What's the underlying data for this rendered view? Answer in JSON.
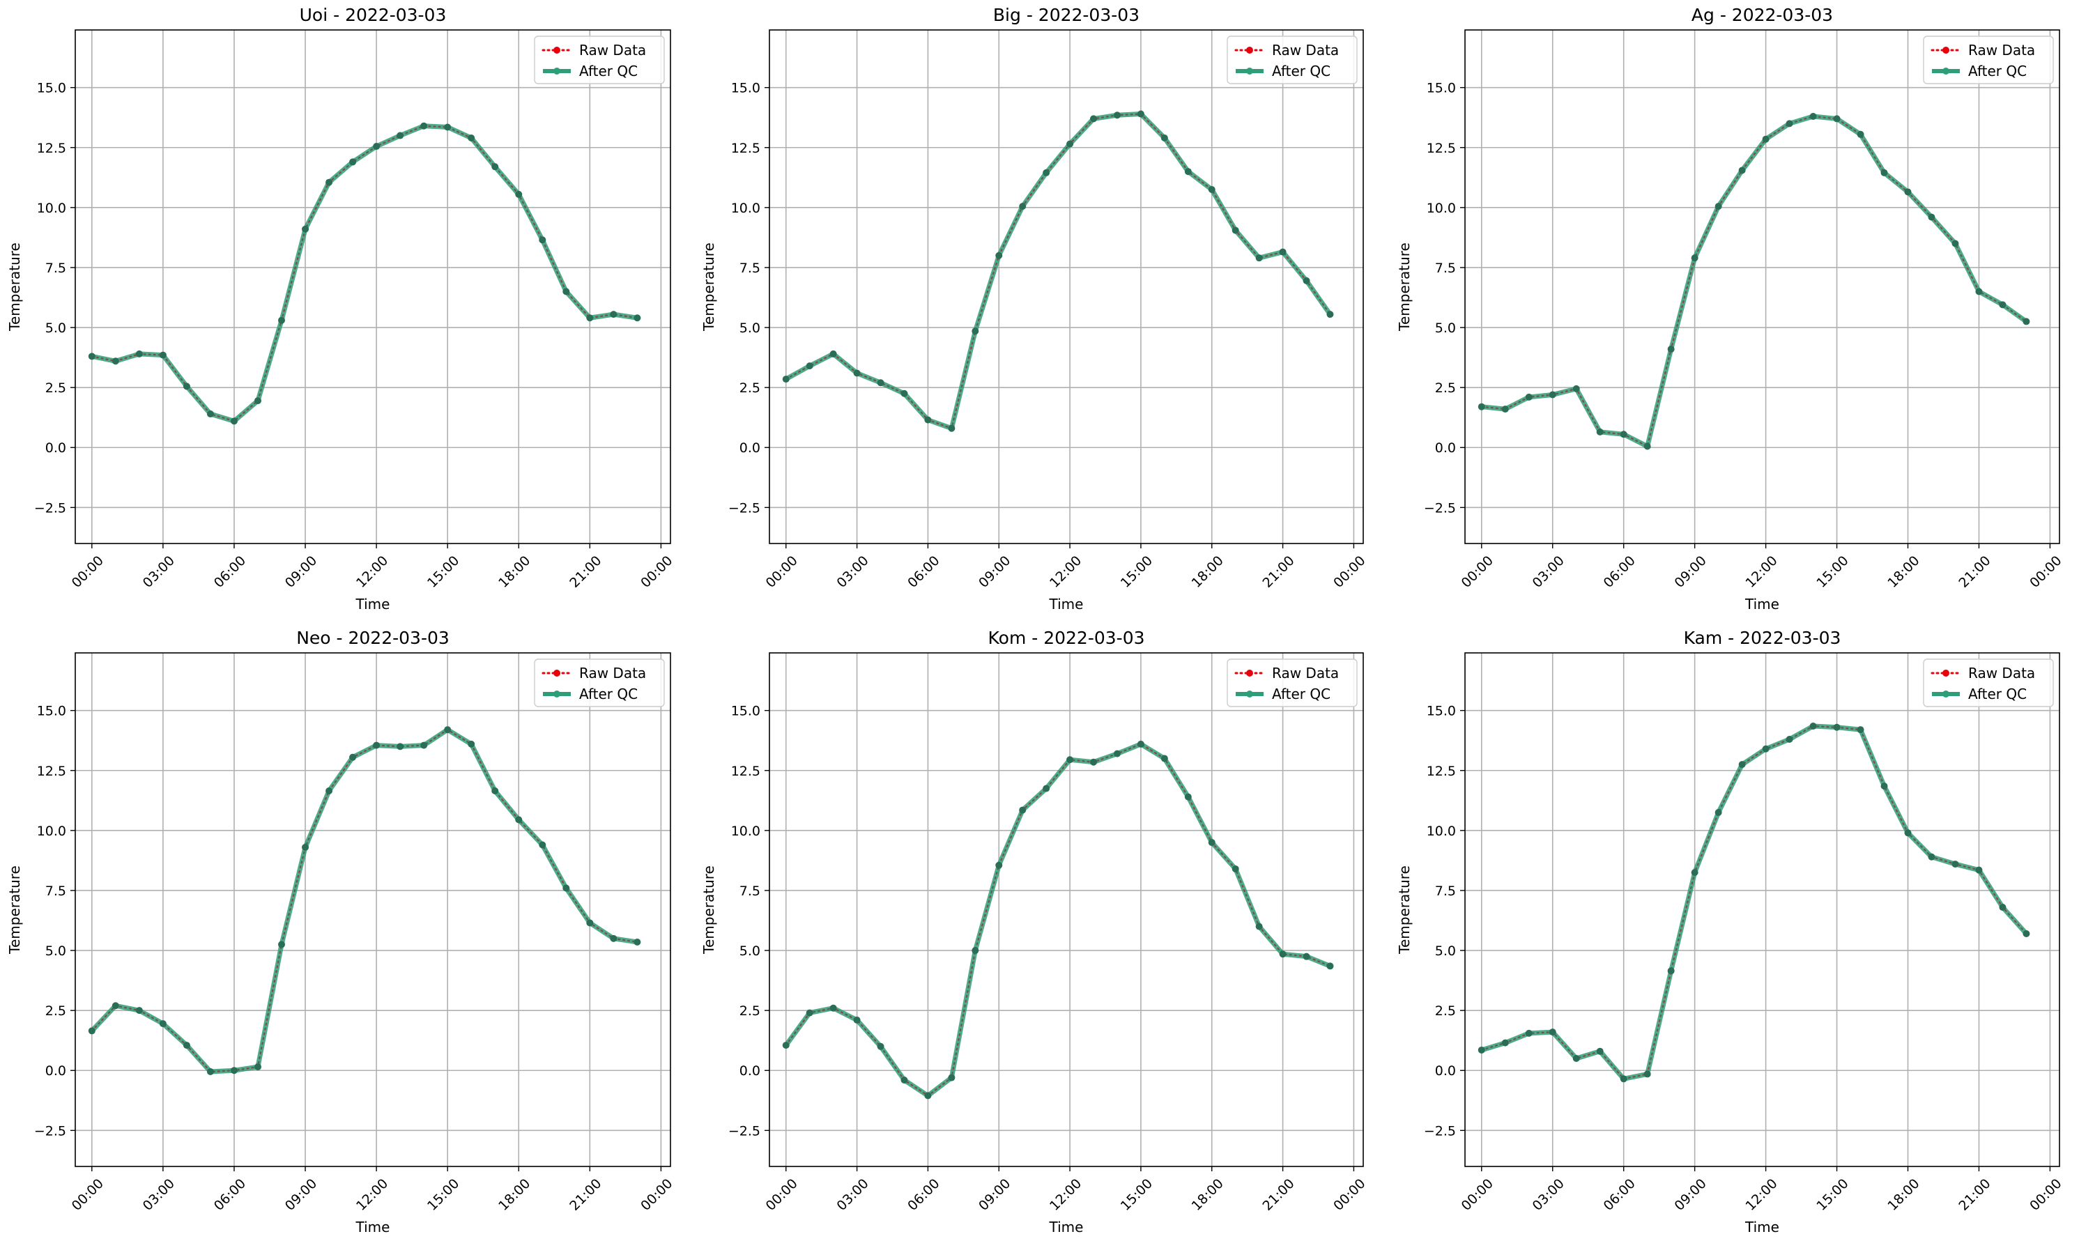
{
  "chart_data": [
    {
      "type": "line",
      "title": "Uoi - 2022-03-03",
      "xlabel": "Time",
      "ylabel": "Temperature",
      "ylim": [
        -4.0,
        17.4
      ],
      "yticks": [
        "−2.5",
        "0.0",
        "2.5",
        "5.0",
        "7.5",
        "10.0",
        "12.5",
        "15.0"
      ],
      "yticks_values": [
        -2.5,
        0,
        2.5,
        5,
        7.5,
        10,
        12.5,
        15
      ],
      "xticks": [
        "00:00",
        "03:00",
        "06:00",
        "09:00",
        "12:00",
        "15:00",
        "18:00",
        "21:00",
        "00:00"
      ],
      "x_hours": [
        0,
        1,
        2,
        3,
        4,
        5,
        6,
        7,
        8,
        9,
        10,
        11,
        12,
        13,
        14,
        15,
        16,
        17,
        18,
        19,
        20,
        21,
        22,
        23
      ],
      "grid": true,
      "legend_position": "upper right",
      "series": [
        {
          "name": "Raw Data",
          "color": "#e8000b",
          "style": "dotted",
          "values": [
            3.8,
            3.6,
            3.9,
            3.85,
            2.55,
            1.4,
            1.1,
            1.95,
            5.3,
            9.1,
            11.05,
            11.9,
            12.55,
            13.0,
            13.4,
            13.35,
            12.9,
            11.7,
            10.55,
            8.65,
            6.5,
            5.4,
            5.55,
            5.4
          ]
        },
        {
          "name": "After QC",
          "color": "#2e9e78",
          "style": "solid",
          "values": [
            3.8,
            3.6,
            3.9,
            3.85,
            2.55,
            1.4,
            1.1,
            1.95,
            5.3,
            9.1,
            11.05,
            11.9,
            12.55,
            13.0,
            13.4,
            13.35,
            12.9,
            11.7,
            10.55,
            8.65,
            6.5,
            5.4,
            5.55,
            5.4
          ]
        }
      ]
    },
    {
      "type": "line",
      "title": "Big - 2022-03-03",
      "xlabel": "Time",
      "ylabel": "Temperature",
      "ylim": [
        -4.0,
        17.4
      ],
      "yticks": [
        "−2.5",
        "0.0",
        "2.5",
        "5.0",
        "7.5",
        "10.0",
        "12.5",
        "15.0"
      ],
      "yticks_values": [
        -2.5,
        0,
        2.5,
        5,
        7.5,
        10,
        12.5,
        15
      ],
      "xticks": [
        "00:00",
        "03:00",
        "06:00",
        "09:00",
        "12:00",
        "15:00",
        "18:00",
        "21:00",
        "00:00"
      ],
      "x_hours": [
        0,
        1,
        2,
        3,
        4,
        5,
        6,
        7,
        8,
        9,
        10,
        11,
        12,
        13,
        14,
        15,
        16,
        17,
        18,
        19,
        20,
        21,
        22,
        23
      ],
      "grid": true,
      "legend_position": "upper right",
      "series": [
        {
          "name": "Raw Data",
          "color": "#e8000b",
          "style": "dotted",
          "values": [
            2.85,
            3.4,
            3.9,
            3.1,
            2.7,
            2.25,
            1.15,
            0.8,
            4.85,
            8.0,
            10.05,
            11.45,
            12.65,
            13.7,
            13.85,
            13.9,
            12.9,
            11.5,
            10.75,
            9.05,
            7.9,
            8.15,
            6.95,
            5.55
          ]
        },
        {
          "name": "After QC",
          "color": "#2e9e78",
          "style": "solid",
          "values": [
            2.85,
            3.4,
            3.9,
            3.1,
            2.7,
            2.25,
            1.15,
            0.8,
            4.85,
            8.0,
            10.05,
            11.45,
            12.65,
            13.7,
            13.85,
            13.9,
            12.9,
            11.5,
            10.75,
            9.05,
            7.9,
            8.15,
            6.95,
            5.55
          ]
        }
      ]
    },
    {
      "type": "line",
      "title": "Ag - 2022-03-03",
      "xlabel": "Time",
      "ylabel": "Temperature",
      "ylim": [
        -4.0,
        17.4
      ],
      "yticks": [
        "−2.5",
        "0.0",
        "2.5",
        "5.0",
        "7.5",
        "10.0",
        "12.5",
        "15.0"
      ],
      "yticks_values": [
        -2.5,
        0,
        2.5,
        5,
        7.5,
        10,
        12.5,
        15
      ],
      "xticks": [
        "00:00",
        "03:00",
        "06:00",
        "09:00",
        "12:00",
        "15:00",
        "18:00",
        "21:00",
        "00:00"
      ],
      "x_hours": [
        0,
        1,
        2,
        3,
        4,
        5,
        6,
        7,
        8,
        9,
        10,
        11,
        12,
        13,
        14,
        15,
        16,
        17,
        18,
        19,
        20,
        21,
        22,
        23
      ],
      "grid": true,
      "legend_position": "upper right",
      "series": [
        {
          "name": "Raw Data",
          "color": "#e8000b",
          "style": "dotted",
          "values": [
            1.7,
            1.6,
            2.1,
            2.2,
            2.45,
            0.65,
            0.55,
            0.05,
            4.1,
            7.9,
            10.05,
            11.55,
            12.85,
            13.5,
            13.8,
            13.7,
            13.05,
            11.45,
            10.65,
            9.6,
            8.5,
            6.5,
            5.95,
            5.25
          ]
        },
        {
          "name": "After QC",
          "color": "#2e9e78",
          "style": "solid",
          "values": [
            1.7,
            1.6,
            2.1,
            2.2,
            2.45,
            0.65,
            0.55,
            0.05,
            4.1,
            7.9,
            10.05,
            11.55,
            12.85,
            13.5,
            13.8,
            13.7,
            13.05,
            11.45,
            10.65,
            9.6,
            8.5,
            6.5,
            5.95,
            5.25
          ]
        }
      ]
    },
    {
      "type": "line",
      "title": "Neo - 2022-03-03",
      "xlabel": "Time",
      "ylabel": "Temperature",
      "ylim": [
        -4.0,
        17.4
      ],
      "yticks": [
        "−2.5",
        "0.0",
        "2.5",
        "5.0",
        "7.5",
        "10.0",
        "12.5",
        "15.0"
      ],
      "yticks_values": [
        -2.5,
        0,
        2.5,
        5,
        7.5,
        10,
        12.5,
        15
      ],
      "xticks": [
        "00:00",
        "03:00",
        "06:00",
        "09:00",
        "12:00",
        "15:00",
        "18:00",
        "21:00",
        "00:00"
      ],
      "x_hours": [
        0,
        1,
        2,
        3,
        4,
        5,
        6,
        7,
        8,
        9,
        10,
        11,
        12,
        13,
        14,
        15,
        16,
        17,
        18,
        19,
        20,
        21,
        22,
        23
      ],
      "grid": true,
      "legend_position": "upper right",
      "series": [
        {
          "name": "Raw Data",
          "color": "#e8000b",
          "style": "dotted",
          "values": [
            1.65,
            2.7,
            2.5,
            1.95,
            1.05,
            -0.05,
            0.0,
            0.15,
            5.25,
            9.3,
            11.65,
            13.05,
            13.55,
            13.5,
            13.55,
            14.2,
            13.6,
            11.65,
            10.45,
            9.4,
            7.6,
            6.15,
            5.5,
            5.35
          ]
        },
        {
          "name": "After QC",
          "color": "#2e9e78",
          "style": "solid",
          "values": [
            1.65,
            2.7,
            2.5,
            1.95,
            1.05,
            -0.05,
            0.0,
            0.15,
            5.25,
            9.3,
            11.65,
            13.05,
            13.55,
            13.5,
            13.55,
            14.2,
            13.6,
            11.65,
            10.45,
            9.4,
            7.6,
            6.15,
            5.5,
            5.35
          ]
        }
      ]
    },
    {
      "type": "line",
      "title": "Kom - 2022-03-03",
      "xlabel": "Time",
      "ylabel": "Temperature",
      "ylim": [
        -4.0,
        17.4
      ],
      "yticks": [
        "−2.5",
        "0.0",
        "2.5",
        "5.0",
        "7.5",
        "10.0",
        "12.5",
        "15.0"
      ],
      "yticks_values": [
        -2.5,
        0,
        2.5,
        5,
        7.5,
        10,
        12.5,
        15
      ],
      "xticks": [
        "00:00",
        "03:00",
        "06:00",
        "09:00",
        "12:00",
        "15:00",
        "18:00",
        "21:00",
        "00:00"
      ],
      "x_hours": [
        0,
        1,
        2,
        3,
        4,
        5,
        6,
        7,
        8,
        9,
        10,
        11,
        12,
        13,
        14,
        15,
        16,
        17,
        18,
        19,
        20,
        21,
        22,
        23
      ],
      "grid": true,
      "legend_position": "upper right",
      "series": [
        {
          "name": "Raw Data",
          "color": "#e8000b",
          "style": "dotted",
          "values": [
            1.05,
            2.4,
            2.6,
            2.1,
            1.0,
            -0.4,
            -1.05,
            -0.3,
            5.0,
            8.55,
            10.85,
            11.75,
            12.95,
            12.85,
            13.2,
            13.6,
            13.0,
            11.4,
            9.5,
            8.4,
            6.0,
            4.85,
            4.75,
            4.35
          ]
        },
        {
          "name": "After QC",
          "color": "#2e9e78",
          "style": "solid",
          "values": [
            1.05,
            2.4,
            2.6,
            2.1,
            1.0,
            -0.4,
            -1.05,
            -0.3,
            5.0,
            8.55,
            10.85,
            11.75,
            12.95,
            12.85,
            13.2,
            13.6,
            13.0,
            11.4,
            9.5,
            8.4,
            6.0,
            4.85,
            4.75,
            4.35
          ]
        }
      ]
    },
    {
      "type": "line",
      "title": "Kam - 2022-03-03",
      "xlabel": "Time",
      "ylabel": "Temperature",
      "ylim": [
        -4.0,
        17.4
      ],
      "yticks": [
        "−2.5",
        "0.0",
        "2.5",
        "5.0",
        "7.5",
        "10.0",
        "12.5",
        "15.0"
      ],
      "yticks_values": [
        -2.5,
        0,
        2.5,
        5,
        7.5,
        10,
        12.5,
        15
      ],
      "xticks": [
        "00:00",
        "03:00",
        "06:00",
        "09:00",
        "12:00",
        "15:00",
        "18:00",
        "21:00",
        "00:00"
      ],
      "x_hours": [
        0,
        1,
        2,
        3,
        4,
        5,
        6,
        7,
        8,
        9,
        10,
        11,
        12,
        13,
        14,
        15,
        16,
        17,
        18,
        19,
        20,
        21,
        22,
        23
      ],
      "grid": true,
      "legend_position": "upper right",
      "series": [
        {
          "name": "Raw Data",
          "color": "#e8000b",
          "style": "dotted",
          "values": [
            0.85,
            1.15,
            1.55,
            1.6,
            0.5,
            0.8,
            -0.35,
            -0.15,
            4.15,
            8.25,
            10.75,
            12.75,
            13.4,
            13.8,
            14.35,
            14.3,
            14.2,
            11.85,
            9.9,
            8.9,
            8.6,
            8.35,
            6.8,
            5.7
          ]
        },
        {
          "name": "After QC",
          "color": "#2e9e78",
          "style": "solid",
          "values": [
            0.85,
            1.15,
            1.55,
            1.6,
            0.5,
            0.8,
            -0.35,
            -0.15,
            4.15,
            8.25,
            10.75,
            12.75,
            13.4,
            13.8,
            14.35,
            14.3,
            14.2,
            11.85,
            9.9,
            8.9,
            8.6,
            8.35,
            6.8,
            5.7
          ]
        }
      ]
    }
  ]
}
